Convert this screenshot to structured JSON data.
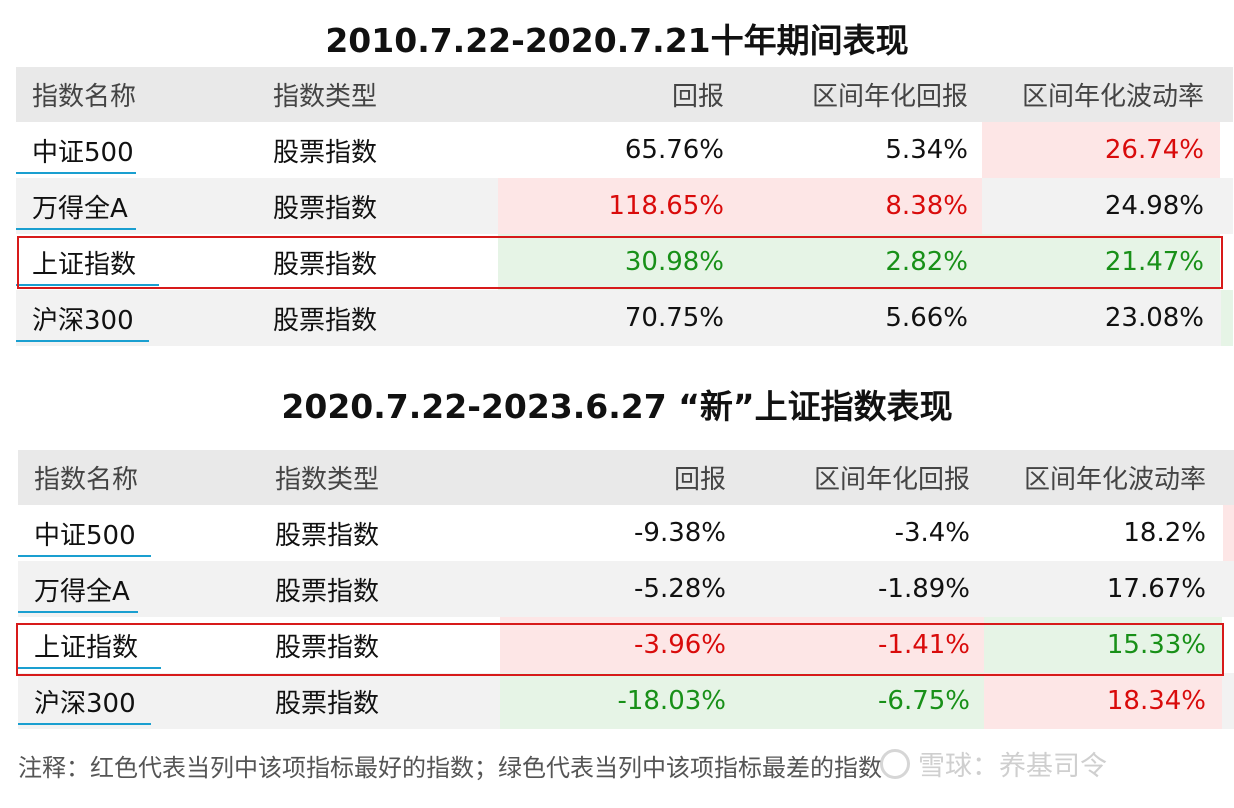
{
  "table1": {
    "title": "2010.7.22-2020.7.21十年期间表现",
    "headers": [
      "指数名称",
      "指数类型",
      "回报",
      "区间年化回报",
      "区间年化波动率"
    ],
    "rows": [
      [
        "中证500",
        "股票指数",
        "65.76%",
        "5.34%",
        "26.74%"
      ],
      [
        "万得全A",
        "股票指数",
        "118.65%",
        "8.38%",
        "24.98%"
      ],
      [
        "上证指数",
        "股票指数",
        "30.98%",
        "2.82%",
        "21.47%"
      ],
      [
        "沪深300",
        "股票指数",
        "70.75%",
        "5.66%",
        "23.08%"
      ]
    ]
  },
  "table2": {
    "title": "2020.7.22-2023.6.27 “新”上证指数表现",
    "headers": [
      "指数名称",
      "指数类型",
      "回报",
      "区间年化回报",
      "区间年化波动率"
    ],
    "rows": [
      [
        "中证500",
        "股票指数",
        "-9.38%",
        "-3.4%",
        "18.2%"
      ],
      [
        "万得全A",
        "股票指数",
        "-5.28%",
        "-1.89%",
        "17.67%"
      ],
      [
        "上证指数",
        "股票指数",
        "-3.96%",
        "-1.41%",
        "15.33%"
      ],
      [
        "沪深300",
        "股票指数",
        "-18.03%",
        "-6.75%",
        "18.34%"
      ]
    ]
  },
  "note": "注释：红色代表当列中该项指标最好的指数；绿色代表当列中该项指标最差的指数",
  "watermark": "雪球：养基司令",
  "colors": {
    "best_text": "#d90b0b",
    "best_bg": "#fde6e6",
    "worst_text": "#189018",
    "worst_bg": "#e6f4e6",
    "highlight_border": "#d71a1a",
    "name_underline": "#1a9fd0"
  }
}
